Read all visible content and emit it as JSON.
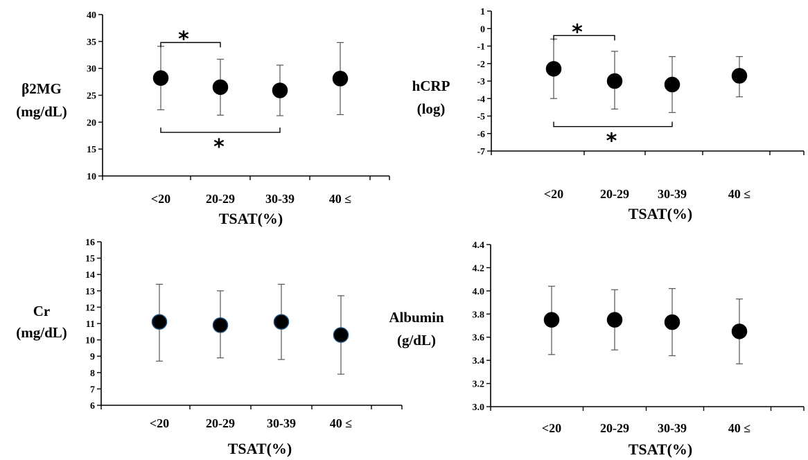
{
  "chart_data": [
    {
      "type": "scatter",
      "ylabel": [
        "β2MG",
        "(mg/dL)"
      ],
      "xlabel": "TSAT(%)",
      "categories": [
        "<20",
        "20-29",
        "30-39",
        "40 ≤"
      ],
      "ylim": [
        10,
        40
      ],
      "yticks": [
        "10",
        "15",
        "20",
        "25",
        "30",
        "35",
        "40"
      ],
      "values": [
        28.2,
        26.5,
        25.9,
        28.1
      ],
      "err_low": [
        22.3,
        21.3,
        21.2,
        21.4
      ],
      "err_high": [
        34.1,
        31.7,
        30.6,
        34.8
      ],
      "significance": [
        {
          "from": 0,
          "to": 1,
          "side": "above",
          "level": 34.8,
          "label": "*"
        },
        {
          "from": 0,
          "to": 2,
          "side": "below",
          "level": 18.1,
          "label": "*"
        }
      ],
      "marker_outline": "#000000"
    },
    {
      "type": "scatter",
      "ylabel": [
        "hCRP",
        "(log)"
      ],
      "xlabel": "TSAT(%)",
      "categories": [
        "<20",
        "20-29",
        "30-39",
        "40 ≤"
      ],
      "ylim": [
        -7,
        1
      ],
      "yticks": [
        "-7",
        "-6",
        "-5",
        "-4",
        "-3",
        "-2",
        "-1",
        "0",
        "1"
      ],
      "values": [
        -2.3,
        -3.0,
        -3.2,
        -2.7
      ],
      "err_low": [
        -4.0,
        -4.6,
        -4.8,
        -3.9
      ],
      "err_high": [
        -0.6,
        -1.3,
        -1.6,
        -1.6
      ],
      "significance": [
        {
          "from": 0,
          "to": 1,
          "side": "above",
          "level": -0.4,
          "label": "*"
        },
        {
          "from": 0,
          "to": 2,
          "side": "below",
          "level": -5.6,
          "label": "*"
        }
      ],
      "marker_outline": "#000000"
    },
    {
      "type": "scatter",
      "ylabel": [
        "Cr",
        "(mg/dL)"
      ],
      "xlabel": "TSAT(%)",
      "categories": [
        "<20",
        "20-29",
        "30-39",
        "40 ≤"
      ],
      "ylim": [
        6,
        16
      ],
      "yticks": [
        "6",
        "7",
        "8",
        "9",
        "10",
        "11",
        "12",
        "13",
        "14",
        "15",
        "16"
      ],
      "values": [
        11.1,
        10.9,
        11.1,
        10.3
      ],
      "err_low": [
        8.7,
        8.9,
        8.8,
        7.9
      ],
      "err_high": [
        13.4,
        13.0,
        13.4,
        12.7
      ],
      "significance": [],
      "marker_outline": "#1f4e79"
    },
    {
      "type": "scatter",
      "ylabel": [
        "Albumin",
        "(g/dL)"
      ],
      "xlabel": "TSAT(%)",
      "categories": [
        "<20",
        "20-29",
        "30-39",
        "40 ≤"
      ],
      "ylim": [
        3.0,
        4.4
      ],
      "yticks": [
        "3.0",
        "3.2",
        "3.4",
        "3.6",
        "3.8",
        "4.0",
        "4.2",
        "4.4"
      ],
      "values": [
        3.75,
        3.75,
        3.73,
        3.65
      ],
      "err_low": [
        3.45,
        3.49,
        3.44,
        3.37
      ],
      "err_high": [
        4.04,
        4.01,
        4.02,
        3.93
      ],
      "significance": [],
      "marker_outline": "#000000"
    }
  ]
}
